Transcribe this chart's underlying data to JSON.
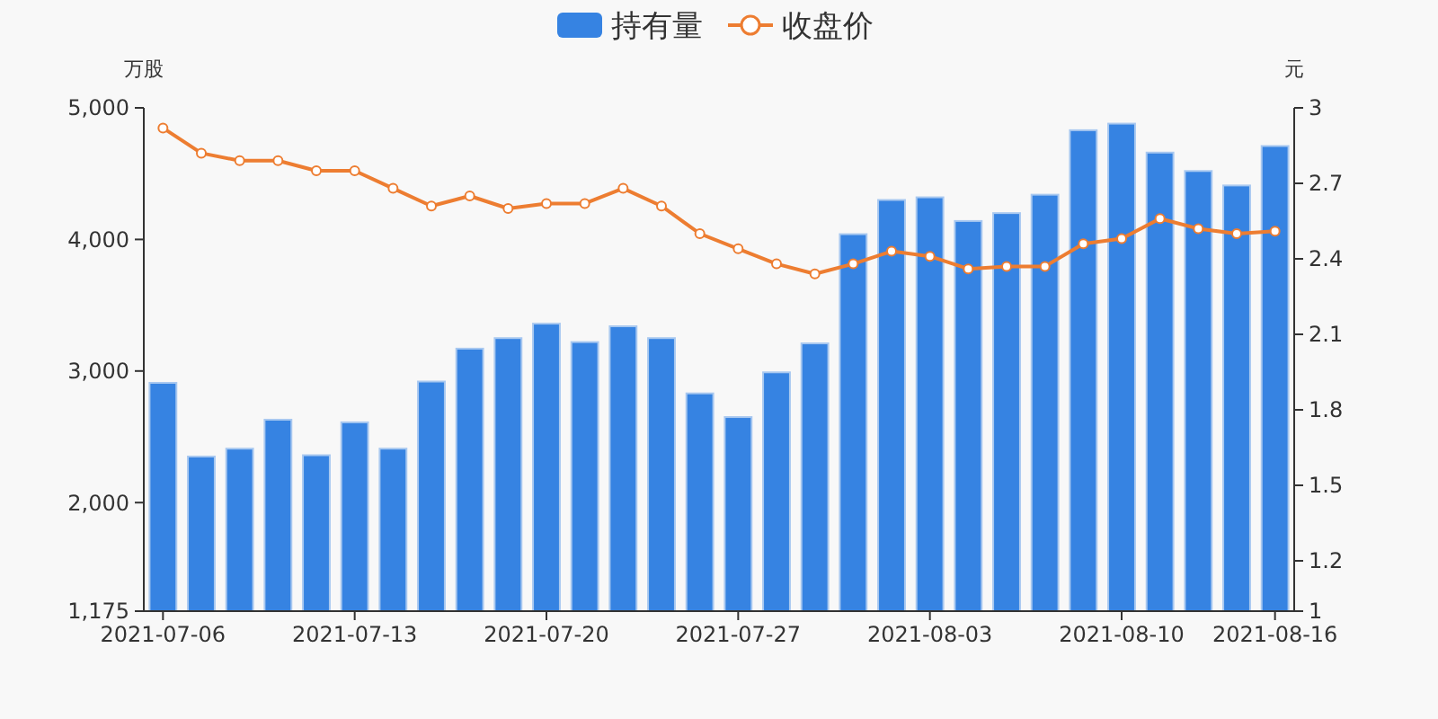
{
  "chart_data": {
    "type": "bar",
    "ylabel": "万股",
    "y2label": "元",
    "categories": [
      "2021-07-06",
      null,
      null,
      null,
      null,
      "2021-07-13",
      null,
      null,
      null,
      null,
      "2021-07-20",
      null,
      null,
      null,
      null,
      "2021-07-27",
      null,
      null,
      null,
      null,
      "2021-08-03",
      null,
      null,
      null,
      null,
      "2021-08-10",
      null,
      null,
      null,
      "2021-08-16"
    ],
    "series": [
      {
        "name": "持有量",
        "color": "#3683e2",
        "values": [
          2910,
          2350,
          2410,
          2630,
          2360,
          2610,
          2410,
          2920,
          3170,
          3250,
          3360,
          3220,
          3340,
          3250,
          2830,
          2650,
          2990,
          3210,
          4040,
          4300,
          4320,
          4140,
          4200,
          4340,
          4830,
          4880,
          4660,
          4520,
          4410,
          4710
        ]
      },
      {
        "name": "收盘价",
        "type": "line",
        "axis": "y2",
        "color": "#ed7d31",
        "marker": "circle",
        "values": [
          2.92,
          2.82,
          2.79,
          2.79,
          2.75,
          2.75,
          2.68,
          2.61,
          2.65,
          2.6,
          2.62,
          2.62,
          2.68,
          2.61,
          2.5,
          2.44,
          2.38,
          2.34,
          2.38,
          2.43,
          2.41,
          2.36,
          2.37,
          2.37,
          2.46,
          2.48,
          2.56,
          2.52,
          2.5,
          2.51
        ]
      }
    ],
    "ylim": [
      1175,
      5000
    ],
    "yticks": [
      {
        "value": 1175,
        "label": "1,175"
      },
      {
        "value": 2000,
        "label": "2,000"
      },
      {
        "value": 3000,
        "label": "3,000"
      },
      {
        "value": 4000,
        "label": "4,000"
      },
      {
        "value": 5000,
        "label": "5,000"
      }
    ],
    "y2lim": [
      1,
      3
    ],
    "y2ticks": [
      1,
      1.2,
      1.5,
      1.8,
      2.1,
      2.4,
      2.7,
      3
    ],
    "legend": "top",
    "grid": false
  }
}
